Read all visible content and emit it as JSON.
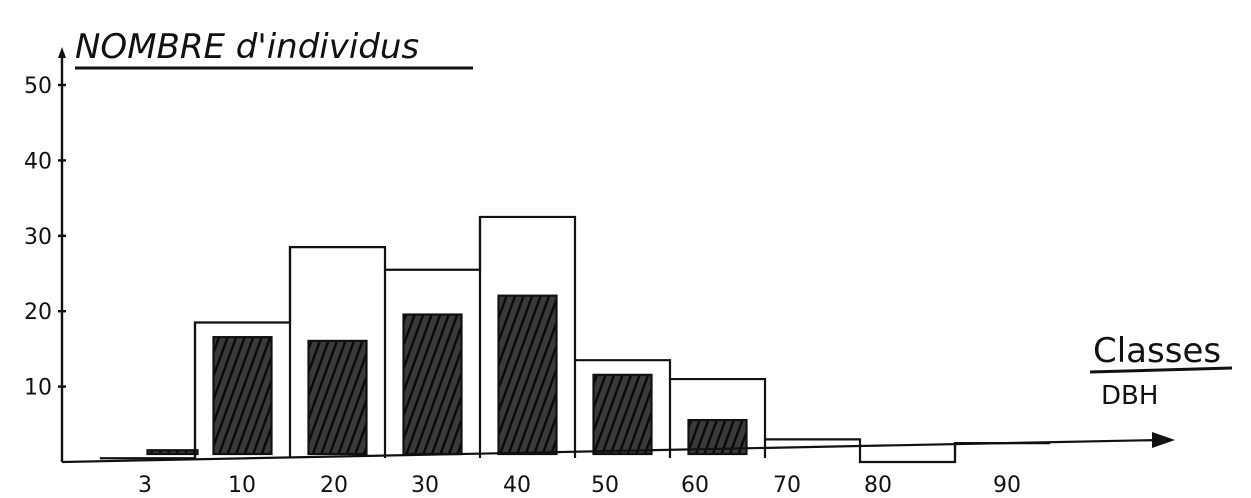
{
  "chart_data": {
    "type": "bar",
    "title": "NOMBRE d'individus",
    "xlabel": "Classes",
    "xlabel_sub": "DBH",
    "ylabel": "",
    "ylim": [
      0,
      50
    ],
    "y_ticks": [
      10,
      20,
      30,
      40,
      50
    ],
    "grid": false,
    "categories": [
      "3",
      "10",
      "20",
      "30",
      "40",
      "50",
      "60",
      "70",
      "80",
      "90"
    ],
    "series": [
      {
        "style": "outline",
        "values": [
          0.5,
          18.5,
          28.5,
          25.5,
          32.5,
          13.5,
          11,
          3,
          0,
          2.5
        ]
      },
      {
        "style": "hatched",
        "values": [
          0.5,
          15.5,
          15,
          18.5,
          21,
          10.5,
          4.5,
          0,
          0,
          0
        ]
      }
    ]
  },
  "colors": {
    "ink": "#111111",
    "background": "#ffffff"
  }
}
